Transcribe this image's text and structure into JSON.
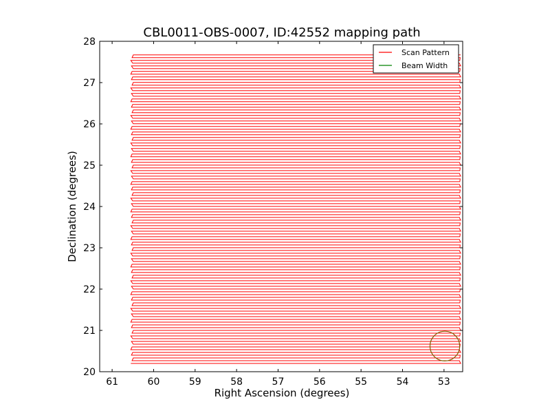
{
  "chart_data": {
    "type": "line",
    "title": "CBL0011-OBS-0007, ID:42552 mapping path",
    "xlabel": "Right Ascension (degrees)",
    "ylabel": "Declination (degrees)",
    "xlim": [
      61.3,
      52.55
    ],
    "ylim": [
      20,
      28
    ],
    "x_inverted": true,
    "xticks": [
      61,
      60,
      59,
      58,
      57,
      56,
      55,
      54,
      53
    ],
    "yticks": [
      20,
      21,
      22,
      23,
      24,
      25,
      26,
      27,
      28
    ],
    "grid": false,
    "legend_position": "top-right",
    "series": [
      {
        "name": "Scan Pattern",
        "color": "#ff0000",
        "pattern": "raster",
        "ra_range": [
          60.55,
          52.6
        ],
        "dec_range": [
          20.2,
          27.7
        ],
        "dec_step": 0.0667
      },
      {
        "name": "Beam Width",
        "color": "#008000",
        "shape": "circle",
        "center": [
          52.98,
          20.62
        ],
        "radius_deg": 0.36
      }
    ]
  }
}
